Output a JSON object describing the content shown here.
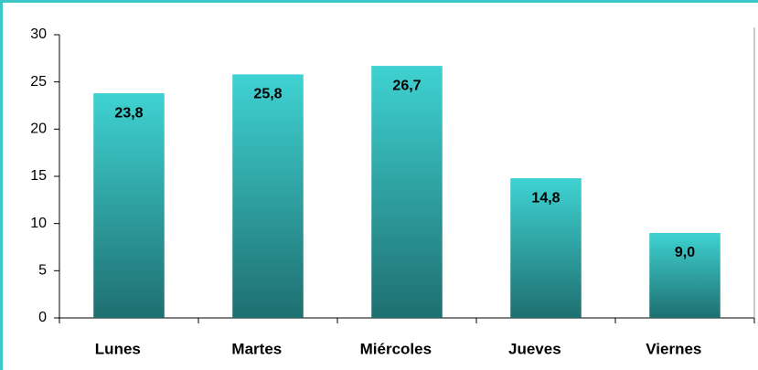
{
  "chart_data": {
    "type": "bar",
    "categories": [
      "Lunes",
      "Martes",
      "Miércoles",
      "Jueves",
      "Viernes"
    ],
    "values": [
      23.8,
      25.8,
      26.7,
      14.8,
      9.0
    ],
    "value_labels": [
      "23,8",
      "25,8",
      "26,7",
      "14,8",
      "9,0"
    ],
    "gradient": [
      "#3fd2d2",
      "#1f6f70"
    ],
    "ylim": [
      0,
      30
    ],
    "yticks": [
      0,
      5,
      10,
      15,
      20,
      25,
      30
    ],
    "grid": false
  }
}
